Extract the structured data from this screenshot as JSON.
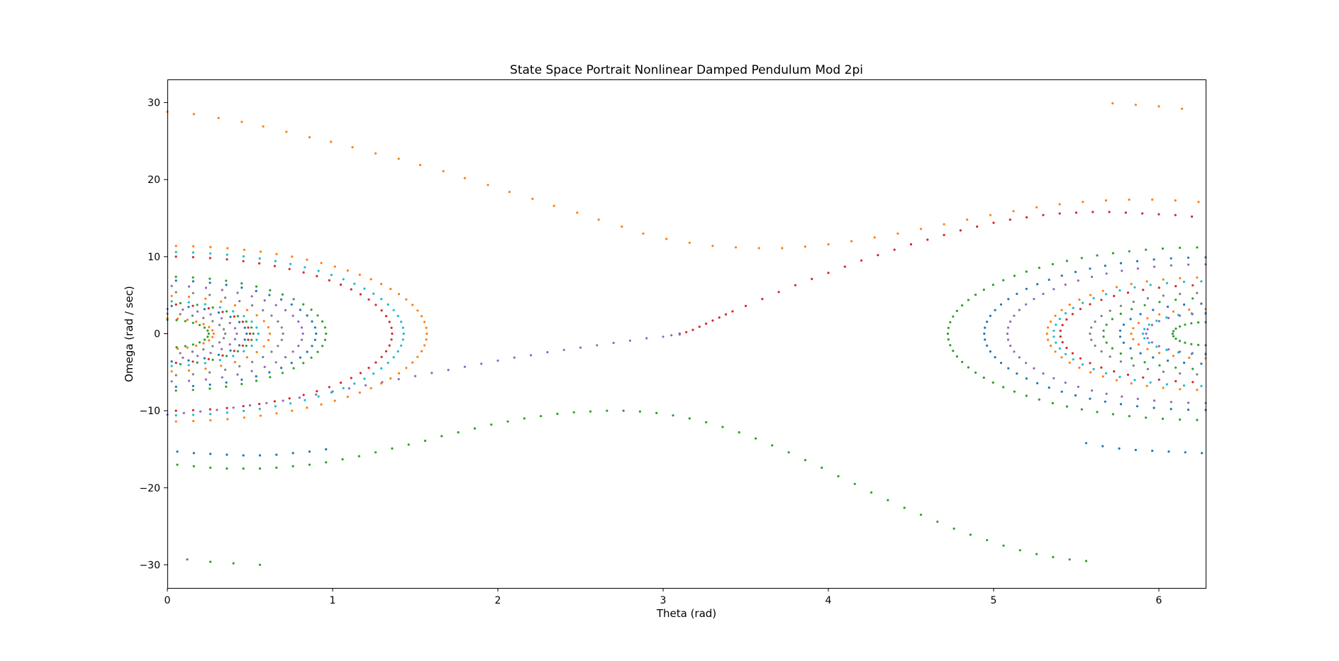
{
  "chart_data": {
    "type": "scatter",
    "title": "State Space Portrait Nonlinear Damped Pendulum Mod 2pi",
    "xlabel": "Theta (rad)",
    "ylabel": "Omega (rad / sec)",
    "xlim": [
      0,
      6.2832
    ],
    "ylim": [
      -33,
      33
    ],
    "x_ticks": [
      0,
      1,
      2,
      3,
      4,
      5,
      6
    ],
    "y_ticks": [
      -30,
      -20,
      -10,
      0,
      10,
      20,
      30
    ],
    "x_tick_labels": [
      "0",
      "1",
      "2",
      "3",
      "4",
      "5",
      "6"
    ],
    "y_tick_labels": [
      "−30",
      "−20",
      "−10",
      "0",
      "10",
      "20",
      "30"
    ],
    "grid": false,
    "legend": "none",
    "colors": [
      "#1f77b4",
      "#ff7f0e",
      "#2ca02c",
      "#d62728",
      "#9467bd",
      "#7f7f7f",
      "#17becf"
    ],
    "series": [
      {
        "color": "#ff7f0e",
        "points": [
          [
            0.0,
            28.8
          ],
          [
            0.16,
            28.5
          ],
          [
            0.31,
            28.0
          ],
          [
            0.45,
            27.5
          ],
          [
            0.58,
            26.9
          ],
          [
            0.72,
            26.2
          ],
          [
            0.86,
            25.5
          ],
          [
            0.99,
            24.9
          ],
          [
            1.12,
            24.2
          ],
          [
            1.26,
            23.4
          ],
          [
            1.4,
            22.7
          ],
          [
            1.53,
            21.9
          ],
          [
            1.67,
            21.1
          ],
          [
            1.8,
            20.2
          ],
          [
            1.94,
            19.3
          ],
          [
            2.07,
            18.4
          ],
          [
            2.21,
            17.5
          ],
          [
            2.34,
            16.6
          ],
          [
            2.48,
            15.7
          ],
          [
            2.61,
            14.8
          ],
          [
            2.75,
            13.9
          ],
          [
            2.88,
            13.0
          ],
          [
            3.02,
            12.3
          ],
          [
            3.16,
            11.8
          ],
          [
            3.3,
            11.4
          ],
          [
            3.44,
            11.2
          ],
          [
            3.58,
            11.1
          ],
          [
            3.72,
            11.1
          ],
          [
            3.86,
            11.3
          ],
          [
            4.0,
            11.6
          ],
          [
            4.14,
            12.0
          ],
          [
            4.28,
            12.5
          ],
          [
            4.42,
            13.0
          ],
          [
            4.56,
            13.6
          ],
          [
            4.7,
            14.2
          ],
          [
            4.84,
            14.8
          ],
          [
            4.98,
            15.4
          ],
          [
            5.12,
            15.9
          ],
          [
            5.26,
            16.4
          ],
          [
            5.4,
            16.8
          ],
          [
            5.54,
            17.1
          ],
          [
            5.68,
            17.3
          ],
          [
            5.82,
            17.4
          ],
          [
            5.96,
            17.4
          ],
          [
            6.1,
            17.3
          ],
          [
            6.24,
            17.1
          ],
          [
            5.72,
            29.9
          ],
          [
            5.86,
            29.7
          ],
          [
            6.0,
            29.5
          ],
          [
            6.14,
            29.2
          ]
        ]
      },
      {
        "color": "#2ca02c",
        "points": [
          [
            0.06,
            -17.0
          ],
          [
            0.16,
            -17.2
          ],
          [
            0.26,
            -17.4
          ],
          [
            0.36,
            -17.5
          ],
          [
            0.46,
            -17.5
          ],
          [
            0.56,
            -17.5
          ],
          [
            0.66,
            -17.4
          ],
          [
            0.76,
            -17.2
          ],
          [
            0.86,
            -17.0
          ],
          [
            0.96,
            -16.7
          ],
          [
            1.06,
            -16.3
          ],
          [
            1.16,
            -15.9
          ],
          [
            1.26,
            -15.4
          ],
          [
            1.36,
            -14.9
          ],
          [
            1.46,
            -14.4
          ],
          [
            1.56,
            -13.9
          ],
          [
            1.66,
            -13.3
          ],
          [
            1.76,
            -12.8
          ],
          [
            1.86,
            -12.3
          ],
          [
            1.96,
            -11.8
          ],
          [
            2.06,
            -11.4
          ],
          [
            2.16,
            -11.0
          ],
          [
            2.26,
            -10.7
          ],
          [
            2.36,
            -10.4
          ],
          [
            2.46,
            -10.2
          ],
          [
            2.56,
            -10.1
          ],
          [
            2.66,
            -10.0
          ],
          [
            2.76,
            -10.0
          ],
          [
            2.86,
            -10.1
          ],
          [
            2.96,
            -10.3
          ],
          [
            3.06,
            -10.6
          ],
          [
            3.16,
            -11.0
          ],
          [
            3.26,
            -11.5
          ],
          [
            3.36,
            -12.1
          ],
          [
            3.46,
            -12.8
          ],
          [
            3.56,
            -13.6
          ],
          [
            3.66,
            -14.5
          ],
          [
            3.76,
            -15.4
          ],
          [
            3.86,
            -16.4
          ],
          [
            3.96,
            -17.4
          ],
          [
            4.06,
            -18.5
          ],
          [
            4.16,
            -19.5
          ],
          [
            4.26,
            -20.6
          ],
          [
            4.36,
            -21.6
          ],
          [
            4.46,
            -22.6
          ],
          [
            4.56,
            -23.5
          ],
          [
            4.66,
            -24.4
          ],
          [
            4.76,
            -25.3
          ],
          [
            4.86,
            -26.1
          ],
          [
            4.96,
            -26.8
          ],
          [
            5.06,
            -27.5
          ],
          [
            5.16,
            -28.1
          ],
          [
            5.26,
            -28.6
          ],
          [
            5.36,
            -29.0
          ],
          [
            5.46,
            -29.3
          ],
          [
            5.56,
            -29.5
          ],
          [
            0.12,
            -29.3
          ],
          [
            0.26,
            -29.6
          ],
          [
            0.4,
            -29.8
          ],
          [
            0.56,
            -30.0
          ]
        ]
      },
      {
        "color": "#1f77b4",
        "points": [
          [
            0.06,
            -15.3
          ],
          [
            0.16,
            -15.5
          ],
          [
            0.26,
            -15.6
          ],
          [
            0.36,
            -15.7
          ],
          [
            0.46,
            -15.8
          ],
          [
            0.56,
            -15.8
          ],
          [
            0.66,
            -15.7
          ],
          [
            0.76,
            -15.5
          ],
          [
            0.86,
            -15.3
          ],
          [
            0.96,
            -15.0
          ],
          [
            5.56,
            -14.2
          ],
          [
            5.66,
            -14.6
          ],
          [
            5.76,
            -14.9
          ],
          [
            5.86,
            -15.1
          ],
          [
            5.96,
            -15.2
          ],
          [
            6.06,
            -15.3
          ],
          [
            6.16,
            -15.4
          ],
          [
            6.26,
            -15.5
          ]
        ]
      },
      {
        "color": "#d62728",
        "points": [
          [
            3.1,
            0.0
          ],
          [
            3.14,
            0.2
          ],
          [
            3.18,
            0.5
          ],
          [
            3.22,
            0.9
          ],
          [
            3.26,
            1.3
          ],
          [
            3.3,
            1.7
          ],
          [
            3.34,
            2.1
          ],
          [
            3.38,
            2.5
          ],
          [
            3.42,
            2.9
          ],
          [
            3.5,
            3.6
          ],
          [
            3.6,
            4.5
          ],
          [
            3.7,
            5.4
          ],
          [
            3.8,
            6.3
          ],
          [
            3.9,
            7.1
          ],
          [
            4.0,
            7.9
          ],
          [
            4.1,
            8.7
          ],
          [
            4.2,
            9.5
          ],
          [
            4.3,
            10.2
          ],
          [
            4.4,
            10.9
          ],
          [
            4.5,
            11.6
          ],
          [
            4.6,
            12.2
          ],
          [
            4.7,
            12.8
          ],
          [
            4.8,
            13.4
          ],
          [
            4.9,
            13.9
          ],
          [
            5.0,
            14.4
          ],
          [
            5.1,
            14.8
          ],
          [
            5.2,
            15.1
          ],
          [
            5.3,
            15.4
          ],
          [
            5.4,
            15.6
          ],
          [
            5.5,
            15.7
          ],
          [
            5.6,
            15.8
          ],
          [
            5.7,
            15.8
          ],
          [
            5.8,
            15.7
          ],
          [
            5.9,
            15.6
          ],
          [
            6.0,
            15.5
          ],
          [
            6.1,
            15.4
          ],
          [
            6.2,
            15.2
          ]
        ]
      },
      {
        "color": "#9467bd",
        "points": [
          [
            0.0,
            -10.5
          ],
          [
            0.1,
            -10.3
          ],
          [
            0.2,
            -10.1
          ],
          [
            0.3,
            -9.9
          ],
          [
            0.4,
            -9.6
          ],
          [
            0.5,
            -9.3
          ],
          [
            0.6,
            -9.0
          ],
          [
            0.7,
            -8.7
          ],
          [
            0.8,
            -8.3
          ],
          [
            0.9,
            -7.9
          ],
          [
            1.0,
            -7.5
          ],
          [
            1.1,
            -7.1
          ],
          [
            1.2,
            -6.7
          ],
          [
            1.3,
            -6.3
          ],
          [
            1.4,
            -5.9
          ],
          [
            1.5,
            -5.5
          ],
          [
            1.6,
            -5.1
          ],
          [
            1.7,
            -4.7
          ],
          [
            1.8,
            -4.3
          ],
          [
            1.9,
            -3.9
          ],
          [
            2.0,
            -3.5
          ],
          [
            2.1,
            -3.1
          ],
          [
            2.2,
            -2.8
          ],
          [
            2.3,
            -2.4
          ],
          [
            2.4,
            -2.1
          ],
          [
            2.5,
            -1.8
          ],
          [
            2.6,
            -1.5
          ],
          [
            2.7,
            -1.2
          ],
          [
            2.8,
            -0.9
          ],
          [
            2.9,
            -0.6
          ],
          [
            3.0,
            -0.4
          ],
          [
            3.05,
            -0.2
          ],
          [
            3.1,
            -0.1
          ]
        ]
      },
      {
        "color": "#ff7f0e",
        "ellipses": [
          {
            "cx": 0,
            "rx": 1.57,
            "ry": 11.4
          },
          {
            "cx": 6.2832,
            "rx": 0.96,
            "ry": 7.3
          },
          {
            "cx": 0,
            "rx": 0.62,
            "ry": 4.9
          },
          {
            "cx": 6.2832,
            "rx": 0.45,
            "ry": 3.2
          },
          {
            "cx": 0,
            "rx": 0.28,
            "ry": 2.0
          }
        ]
      },
      {
        "color": "#17becf",
        "ellipses": [
          {
            "cx": 0,
            "rx": 1.43,
            "ry": 10.6
          },
          {
            "cx": 6.2832,
            "rx": 0.92,
            "ry": 6.8
          },
          {
            "cx": 0,
            "rx": 0.55,
            "ry": 4.2
          },
          {
            "cx": 6.2832,
            "rx": 0.38,
            "ry": 2.7
          }
        ]
      },
      {
        "color": "#d62728",
        "ellipses": [
          {
            "cx": 0,
            "rx": 1.36,
            "ry": 10.0
          },
          {
            "cx": 6.2832,
            "rx": 0.88,
            "ry": 6.3
          },
          {
            "cx": 0,
            "rx": 0.5,
            "ry": 3.8
          }
        ]
      },
      {
        "color": "#2ca02c",
        "ellipses": [
          {
            "cx": 0,
            "rx": 0.96,
            "ry": 7.4
          },
          {
            "cx": 6.2832,
            "rx": 1.56,
            "ry": 11.2
          },
          {
            "cx": 0,
            "rx": 0.52,
            "ry": 4.0
          },
          {
            "cx": 6.2832,
            "rx": 0.62,
            "ry": 4.6
          },
          {
            "cx": 0,
            "rx": 0.25,
            "ry": 1.8
          },
          {
            "cx": 6.2832,
            "rx": 0.2,
            "ry": 1.5
          }
        ]
      },
      {
        "color": "#1f77b4",
        "ellipses": [
          {
            "cx": 0,
            "rx": 0.9,
            "ry": 6.9
          },
          {
            "cx": 6.2832,
            "rx": 1.34,
            "ry": 9.9
          },
          {
            "cx": 0,
            "rx": 0.48,
            "ry": 3.6
          },
          {
            "cx": 6.2832,
            "rx": 0.52,
            "ry": 3.9
          }
        ]
      },
      {
        "color": "#9467bd",
        "ellipses": [
          {
            "cx": 0,
            "rx": 0.82,
            "ry": 6.2
          },
          {
            "cx": 6.2832,
            "rx": 1.2,
            "ry": 9.0
          },
          {
            "cx": 0,
            "rx": 0.42,
            "ry": 3.2
          },
          {
            "cx": 6.2832,
            "rx": 0.36,
            "ry": 2.6
          }
        ]
      },
      {
        "color": "#7f7f7f",
        "ellipses": [
          {
            "cx": 0,
            "rx": 0.7,
            "ry": 5.4
          },
          {
            "cx": 6.2832,
            "rx": 0.7,
            "ry": 5.3
          },
          {
            "cx": 0,
            "rx": 0.35,
            "ry": 2.6
          }
        ]
      }
    ]
  }
}
